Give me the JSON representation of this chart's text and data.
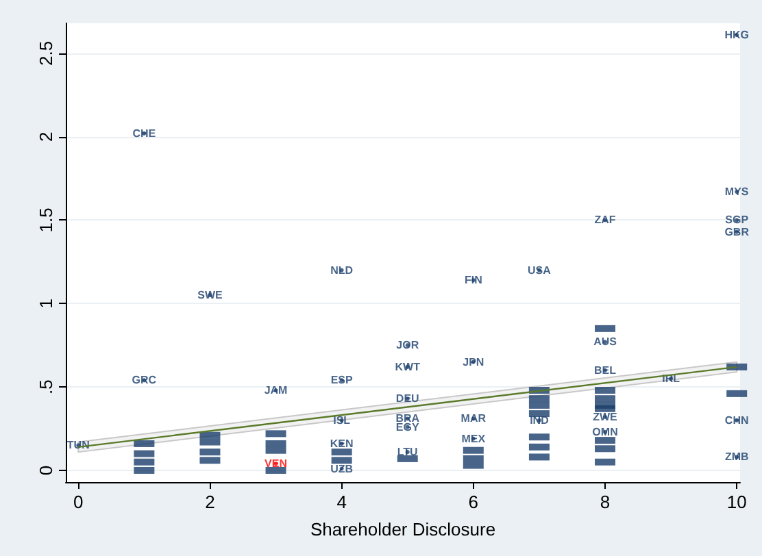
{
  "chart_data": {
    "type": "scatter",
    "xlabel": "Shareholder Disclosure",
    "xlim": [
      -0.19,
      10.05
    ],
    "xticks": [
      0,
      2,
      4,
      6,
      8,
      10
    ],
    "ylim": [
      -0.07,
      2.68
    ],
    "yticks": [
      0,
      {
        "value": 0.5,
        "label": ".5"
      },
      1,
      1.5,
      2,
      2.5
    ],
    "grid": "y",
    "series": [
      {
        "color": "#1a3f6b",
        "x": [
          10,
          1,
          10,
          8,
          10,
          10,
          4,
          7,
          6,
          2,
          8,
          8,
          5,
          5,
          6,
          1,
          8,
          4,
          3,
          9,
          10,
          5,
          4,
          5,
          5,
          6,
          10,
          8,
          7,
          10,
          0,
          4,
          5,
          6,
          8,
          7,
          10,
          3,
          4,
          1,
          1,
          1,
          1,
          2,
          2,
          2,
          2,
          3,
          3,
          3,
          3,
          4,
          4,
          5,
          6,
          6,
          6,
          7,
          7,
          7,
          7,
          7,
          7,
          8,
          8,
          8,
          8,
          8,
          8,
          8
        ],
        "values": [
          2.61,
          2.02,
          1.67,
          1.5,
          1.5,
          1.43,
          1.2,
          1.2,
          1.14,
          1.05,
          0.85,
          0.77,
          0.75,
          0.62,
          0.65,
          0.54,
          0.6,
          0.54,
          0.48,
          0.55,
          0.62,
          0.43,
          0.3,
          0.31,
          0.26,
          0.31,
          0.3,
          0.32,
          0.3,
          0.46,
          0.15,
          0.16,
          0.11,
          0.19,
          0.23,
          0.08,
          0.08,
          0.04,
          0.01,
          0.16,
          0.1,
          0.05,
          0.0,
          0.21,
          0.17,
          0.11,
          0.06,
          0.22,
          0.16,
          0.12,
          0.0,
          0.11,
          0.06,
          0.07,
          0.12,
          0.07,
          0.03,
          0.48,
          0.43,
          0.39,
          0.34,
          0.2,
          0.14,
          0.48,
          0.43,
          0.39,
          0.37,
          0.18,
          0.13,
          0.05
        ],
        "value_labels": [
          "HKG",
          "CHE",
          "MYS",
          "ZAF",
          "SGP",
          "GBR",
          "NLD",
          "USA",
          "FIN",
          "SWE",
          null,
          "AUS",
          "JOR",
          "KWT",
          "JPN",
          "GRC",
          "BEL",
          "ESP",
          "JAM",
          "IRL",
          null,
          "DEU",
          "ISL",
          "BRA",
          "EGY",
          "MAR",
          "CHN",
          "ZWE",
          "IND",
          null,
          "TUN",
          "KEN",
          "LTU",
          "MEX",
          "OMN",
          null,
          "ZMB",
          "VEN",
          "UZB",
          null,
          null,
          null,
          null,
          null,
          null,
          null,
          null,
          null,
          null,
          null,
          null,
          null,
          null,
          null,
          null,
          null,
          null,
          null,
          null,
          null,
          null,
          null,
          null,
          null,
          null,
          null,
          null,
          null,
          null,
          null
        ],
        "colors": [
          "#1a3f6b",
          "#1a3f6b",
          "#1a3f6b",
          "#1a3f6b",
          "#1a3f6b",
          "#1a3f6b",
          "#1a3f6b",
          "#1a3f6b",
          "#1a3f6b",
          "#1a3f6b",
          "#1a3f6b",
          "#1a3f6b",
          "#1a3f6b",
          "#1a3f6b",
          "#1a3f6b",
          "#1a3f6b",
          "#1a3f6b",
          "#1a3f6b",
          "#1a3f6b",
          "#1a3f6b",
          "#1a3f6b",
          "#1a3f6b",
          "#1a3f6b",
          "#1a3f6b",
          "#1a3f6b",
          "#1a3f6b",
          "#1a3f6b",
          "#1a3f6b",
          "#1a3f6b",
          "#1a3f6b",
          "#1a3f6b",
          "#1a3f6b",
          "#1a3f6b",
          "#1a3f6b",
          "#1a3f6b",
          "#1a3f6b",
          "#1a3f6b",
          "#ff0000",
          "#1a3f6b",
          "#1a3f6b",
          "#1a3f6b",
          "#1a3f6b",
          "#1a3f6b",
          "#1a3f6b",
          "#1a3f6b",
          "#1a3f6b",
          "#1a3f6b",
          "#1a3f6b",
          "#1a3f6b",
          "#1a3f6b",
          "#1a3f6b",
          "#1a3f6b",
          "#1a3f6b",
          "#1a3f6b",
          "#1a3f6b",
          "#1a3f6b",
          "#1a3f6b",
          "#1a3f6b",
          "#1a3f6b",
          "#1a3f6b",
          "#1a3f6b",
          "#1a3f6b",
          "#1a3f6b",
          "#1a3f6b",
          "#1a3f6b",
          "#1a3f6b",
          "#1a3f6b",
          "#1a3f6b",
          "#1a3f6b",
          "#1a3f6b"
        ]
      },
      {
        "type": "line",
        "color": "#5a7a2a",
        "x": [
          0,
          10
        ],
        "values": [
          0.14,
          0.62
        ],
        "lower": [
          0.11,
          0.59
        ],
        "upper": [
          0.17,
          0.65
        ]
      }
    ]
  }
}
